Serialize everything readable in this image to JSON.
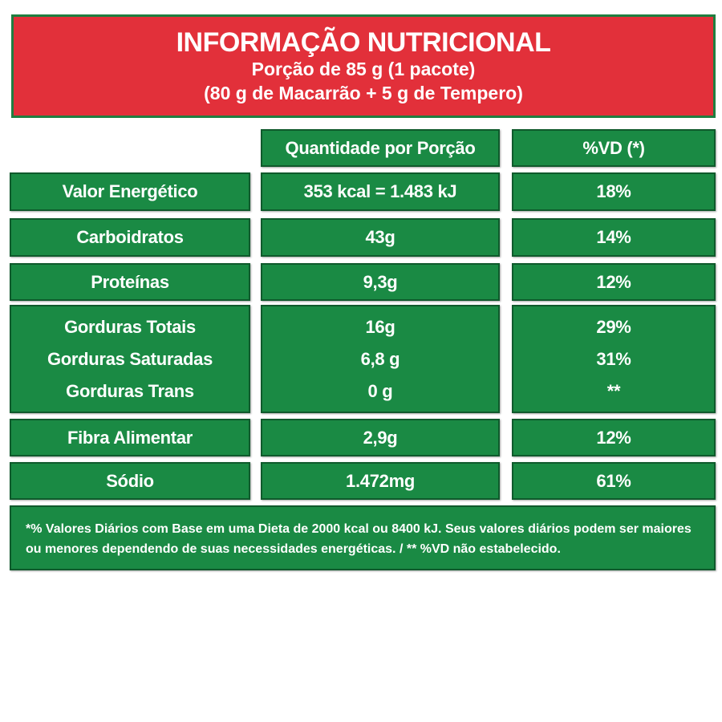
{
  "header": {
    "title": "INFORMAÇÃO NUTRICIONAL",
    "portion": "Porção de 85 g (1 pacote)",
    "composition": "(80 g de Macarrão + 5 g de Tempero)"
  },
  "columns": {
    "quantity": "Quantidade por Porção",
    "dv": "%VD (*)"
  },
  "rows": [
    {
      "name": "Valor Energético",
      "amount": "353 kcal = 1.483 kJ",
      "dv": "18%"
    },
    {
      "name": "Carboidratos",
      "amount": "43g",
      "dv": "14%"
    },
    {
      "name": "Proteínas",
      "amount": "9,3g",
      "dv": "12%"
    },
    {
      "fats": [
        {
          "name": "Gorduras Totais",
          "amount": "16g",
          "dv": "29%"
        },
        {
          "name": "Gorduras Saturadas",
          "amount": "6,8 g",
          "dv": "31%"
        },
        {
          "name": "Gorduras Trans",
          "amount": "0 g",
          "dv": "**"
        }
      ]
    },
    {
      "name": "Fibra Alimentar",
      "amount": "2,9g",
      "dv": "12%"
    },
    {
      "name": "Sódio",
      "amount": "1.472mg",
      "dv": "61%"
    }
  ],
  "footer": {
    "line1": "*% Valores Diários com Base em uma Dieta de 2000 kcal ou 8400 kJ. Seus valores diários podem ser maiores",
    "line2": "ou menores dependendo de suas necessidades energéticas. / ** %VD não estabelecido."
  },
  "colors": {
    "header_red": "#e2303a",
    "table_green": "#1a8a44",
    "text": "#ffffff"
  }
}
